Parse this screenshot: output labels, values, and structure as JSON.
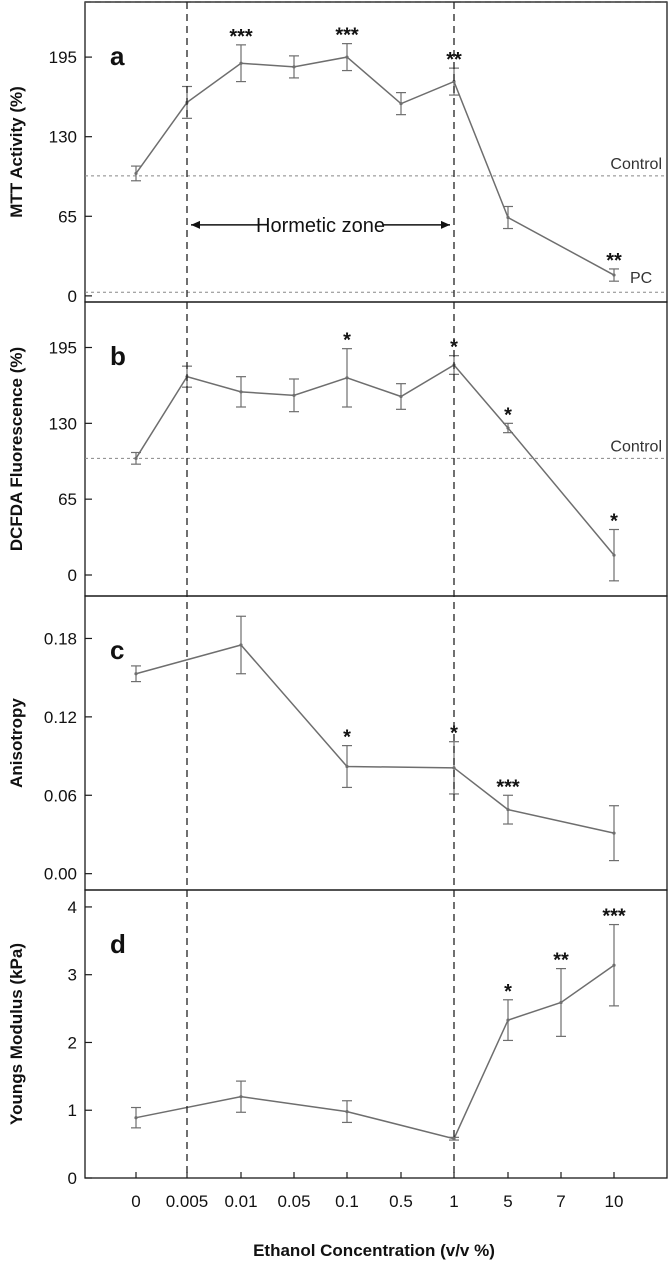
{
  "chart_data": [
    {
      "type": "line",
      "panel_letter": "a",
      "ylabel": "MTT Activity (%)",
      "categories": [
        "0",
        "0.005",
        "0.01",
        "0.05",
        "0.1",
        "0.5",
        "1",
        "5",
        "7",
        "10"
      ],
      "yticks": [
        0,
        65,
        130,
        195
      ],
      "ylim": [
        -5,
        240
      ],
      "series": [
        {
          "x": [
            "0",
            "0.005",
            "0.01",
            "0.05",
            "0.1",
            "0.5",
            "1",
            "5",
            "7",
            "10"
          ],
          "values": [
            100,
            158,
            190,
            187,
            195,
            157,
            175,
            64,
            null,
            17
          ],
          "errors": [
            6,
            13,
            15,
            9,
            11,
            9,
            11,
            9,
            null,
            5
          ],
          "significance": [
            "",
            "",
            "***",
            "",
            "***",
            "",
            "**",
            "",
            "",
            "**"
          ]
        }
      ],
      "reference_lines": [
        {
          "label": "Control",
          "y": 98
        },
        {
          "label": "PC",
          "y": 3
        }
      ],
      "annotations": [
        {
          "text": "Hormetic zone",
          "x_from": "0.005",
          "x_to": "1",
          "y": 58
        }
      ]
    },
    {
      "type": "line",
      "panel_letter": "b",
      "ylabel": "DCFDA Fluorescence (%)",
      "categories": [
        "0",
        "0.005",
        "0.01",
        "0.05",
        "0.1",
        "0.5",
        "1",
        "5",
        "7",
        "10"
      ],
      "yticks": [
        0,
        65,
        130,
        195
      ],
      "ylim": [
        -18,
        234
      ],
      "series": [
        {
          "x": [
            "0",
            "0.005",
            "0.01",
            "0.05",
            "0.1",
            "0.5",
            "1",
            "5",
            "7",
            "10"
          ],
          "values": [
            100,
            170,
            157,
            154,
            169,
            153,
            180,
            126,
            null,
            17
          ],
          "errors": [
            5,
            9,
            13,
            14,
            25,
            11,
            8,
            4,
            null,
            22
          ],
          "significance": [
            "",
            "",
            "",
            "",
            "*",
            "",
            "*",
            "*",
            "",
            "*"
          ]
        }
      ],
      "reference_lines": [
        {
          "label": "Control",
          "y": 100
        }
      ]
    },
    {
      "type": "line",
      "panel_letter": "c",
      "ylabel": "Anisotropy",
      "categories": [
        "0",
        "0.005",
        "0.01",
        "0.05",
        "0.1",
        "0.5",
        "1",
        "5",
        "7",
        "10"
      ],
      "yticks": [
        "0.00",
        "0.06",
        "0.12",
        "0.18"
      ],
      "ylim": [
        -0.0125,
        0.2125
      ],
      "series": [
        {
          "x": [
            "0",
            "0.005",
            "0.01",
            "0.05",
            "0.1",
            "0.5",
            "1",
            "5",
            "7",
            "10"
          ],
          "values": [
            0.153,
            null,
            0.175,
            null,
            0.082,
            null,
            0.081,
            0.049,
            null,
            0.031
          ],
          "errors": [
            0.006,
            null,
            0.022,
            null,
            0.016,
            null,
            0.02,
            0.011,
            null,
            0.021
          ],
          "significance": [
            "",
            "",
            "",
            "",
            "*",
            "",
            "*",
            "***",
            "",
            ""
          ]
        }
      ]
    },
    {
      "type": "line",
      "panel_letter": "d",
      "ylabel": "Youngs Modulus (kPa)",
      "categories": [
        "0",
        "0.005",
        "0.01",
        "0.05",
        "0.1",
        "0.5",
        "1",
        "5",
        "7",
        "10"
      ],
      "yticks": [
        0,
        1,
        2,
        3,
        4
      ],
      "ylim": [
        0,
        4.25
      ],
      "series": [
        {
          "x": [
            "0",
            "0.005",
            "0.01",
            "0.05",
            "0.1",
            "0.5",
            "1",
            "5",
            "7",
            "10"
          ],
          "values": [
            0.89,
            null,
            1.2,
            null,
            0.98,
            null,
            0.58,
            2.33,
            2.59,
            3.14
          ],
          "errors": [
            0.15,
            null,
            0.23,
            null,
            0.16,
            null,
            0.02,
            0.3,
            0.5,
            0.6
          ],
          "significance": [
            "",
            "",
            "",
            "",
            "",
            "",
            "",
            "*",
            "**",
            "***"
          ]
        }
      ]
    }
  ],
  "xlabel": "Ethanol Concentration (v/v %)",
  "x_tick_labels": [
    "0",
    "0.005",
    "0.01",
    "0.05",
    "0.1",
    "0.5",
    "1",
    "5",
    "7",
    "10"
  ],
  "colors": {
    "line": "#6e6e6e",
    "frame": "#1a1a1a",
    "text": "#111111"
  }
}
